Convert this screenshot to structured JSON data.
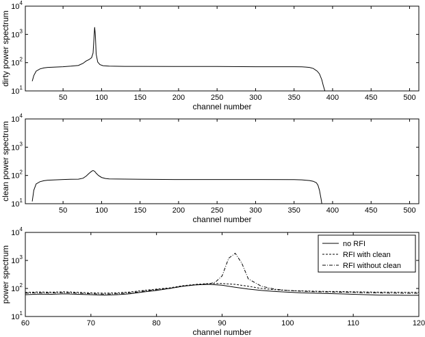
{
  "chart_data": [
    {
      "type": "line",
      "scale": "log-y",
      "xlabel": "channel number",
      "ylabel": "dirty power spectrum",
      "xlim": [
        1,
        512
      ],
      "ylim": [
        10,
        10000
      ],
      "xticks": [
        "50",
        "100",
        "150",
        "200",
        "250",
        "300",
        "350",
        "400",
        "450",
        "500"
      ],
      "series": [
        {
          "style": "solid",
          "points": [
            [
              10,
              22
            ],
            [
              12,
              35
            ],
            [
              15,
              50
            ],
            [
              20,
              60
            ],
            [
              25,
              65
            ],
            [
              30,
              68
            ],
            [
              40,
              70
            ],
            [
              50,
              72
            ],
            [
              60,
              75
            ],
            [
              70,
              80
            ],
            [
              76,
              95
            ],
            [
              80,
              115
            ],
            [
              84,
              130
            ],
            [
              87,
              150
            ],
            [
              89,
              220
            ],
            [
              90,
              600
            ],
            [
              91,
              1800
            ],
            [
              92,
              900
            ],
            [
              93,
              200
            ],
            [
              95,
              105
            ],
            [
              98,
              85
            ],
            [
              102,
              78
            ],
            [
              110,
              75
            ],
            [
              130,
              74
            ],
            [
              150,
              74
            ],
            [
              200,
              73
            ],
            [
              250,
              73
            ],
            [
              300,
              72
            ],
            [
              340,
              72
            ],
            [
              350,
              72
            ],
            [
              360,
              71
            ],
            [
              365,
              70
            ],
            [
              370,
              68
            ],
            [
              375,
              62
            ],
            [
              380,
              50
            ],
            [
              383,
              40
            ],
            [
              386,
              25
            ],
            [
              388,
              15
            ],
            [
              390,
              10
            ]
          ]
        }
      ]
    },
    {
      "type": "line",
      "scale": "log-y",
      "xlabel": "channel number",
      "ylabel": "clean power spectrum",
      "xlim": [
        1,
        512
      ],
      "ylim": [
        10,
        10000
      ],
      "xticks": [
        "50",
        "100",
        "150",
        "200",
        "250",
        "300",
        "350",
        "400",
        "450",
        "500"
      ],
      "series": [
        {
          "style": "solid",
          "points": [
            [
              10,
              12
            ],
            [
              12,
              30
            ],
            [
              15,
              50
            ],
            [
              20,
              60
            ],
            [
              25,
              65
            ],
            [
              30,
              68
            ],
            [
              40,
              70
            ],
            [
              50,
              72
            ],
            [
              60,
              73
            ],
            [
              70,
              74
            ],
            [
              76,
              80
            ],
            [
              80,
              95
            ],
            [
              84,
              120
            ],
            [
              87,
              140
            ],
            [
              89,
              150
            ],
            [
              91,
              140
            ],
            [
              93,
              120
            ],
            [
              96,
              100
            ],
            [
              100,
              85
            ],
            [
              105,
              78
            ],
            [
              110,
              75
            ],
            [
              150,
              73
            ],
            [
              200,
              72
            ],
            [
              250,
              72
            ],
            [
              300,
              72
            ],
            [
              350,
              71
            ],
            [
              360,
              70
            ],
            [
              365,
              68
            ],
            [
              370,
              66
            ],
            [
              375,
              62
            ],
            [
              379,
              55
            ],
            [
              381,
              45
            ],
            [
              383,
              30
            ],
            [
              385,
              15
            ],
            [
              386,
              10
            ]
          ]
        }
      ]
    },
    {
      "type": "line",
      "scale": "log-y",
      "xlabel": "channel number",
      "ylabel": "power spectrum",
      "xlim": [
        60,
        120
      ],
      "ylim": [
        10,
        10000
      ],
      "xticks": [
        "60",
        "70",
        "80",
        "90",
        "100",
        "110",
        "120"
      ],
      "legend_position": "top-right",
      "series": [
        {
          "name": "no RFI",
          "style": "solid",
          "points": [
            [
              60,
              60
            ],
            [
              62,
              63
            ],
            [
              64,
              62
            ],
            [
              66,
              64
            ],
            [
              68,
              62
            ],
            [
              70,
              60
            ],
            [
              72,
              58
            ],
            [
              74,
              60
            ],
            [
              76,
              65
            ],
            [
              78,
              75
            ],
            [
              80,
              85
            ],
            [
              82,
              100
            ],
            [
              84,
              120
            ],
            [
              86,
              135
            ],
            [
              88,
              140
            ],
            [
              90,
              130
            ],
            [
              92,
              110
            ],
            [
              94,
              95
            ],
            [
              96,
              85
            ],
            [
              98,
              78
            ],
            [
              100,
              74
            ],
            [
              102,
              70
            ],
            [
              104,
              68
            ],
            [
              106,
              66
            ],
            [
              108,
              64
            ],
            [
              110,
              62
            ],
            [
              112,
              60
            ],
            [
              114,
              58
            ],
            [
              116,
              58
            ],
            [
              118,
              57
            ],
            [
              120,
              57
            ]
          ]
        },
        {
          "name": "RFI with clean",
          "style": "dashed",
          "points": [
            [
              60,
              72
            ],
            [
              62,
              75
            ],
            [
              64,
              74
            ],
            [
              66,
              76
            ],
            [
              68,
              73
            ],
            [
              70,
              70
            ],
            [
              72,
              68
            ],
            [
              74,
              70
            ],
            [
              76,
              75
            ],
            [
              78,
              85
            ],
            [
              80,
              95
            ],
            [
              82,
              105
            ],
            [
              84,
              125
            ],
            [
              86,
              140
            ],
            [
              88,
              150
            ],
            [
              90,
              150
            ],
            [
              92,
              140
            ],
            [
              94,
              120
            ],
            [
              96,
              100
            ],
            [
              98,
              90
            ],
            [
              100,
              85
            ],
            [
              102,
              82
            ],
            [
              104,
              80
            ],
            [
              106,
              78
            ],
            [
              108,
              78
            ],
            [
              110,
              76
            ],
            [
              112,
              75
            ],
            [
              114,
              74
            ],
            [
              116,
              74
            ],
            [
              118,
              73
            ],
            [
              120,
              73
            ]
          ]
        },
        {
          "name": "RFI without clean",
          "style": "dashdot",
          "points": [
            [
              60,
              68
            ],
            [
              62,
              70
            ],
            [
              64,
              69
            ],
            [
              66,
              71
            ],
            [
              68,
              68
            ],
            [
              70,
              65
            ],
            [
              72,
              63
            ],
            [
              74,
              65
            ],
            [
              76,
              70
            ],
            [
              78,
              80
            ],
            [
              80,
              90
            ],
            [
              82,
              100
            ],
            [
              84,
              120
            ],
            [
              86,
              135
            ],
            [
              88,
              145
            ],
            [
              89,
              170
            ],
            [
              90,
              280
            ],
            [
              91,
              1200
            ],
            [
              92,
              1800
            ],
            [
              93,
              800
            ],
            [
              94,
              220
            ],
            [
              96,
              120
            ],
            [
              98,
              95
            ],
            [
              100,
              85
            ],
            [
              102,
              80
            ],
            [
              104,
              77
            ],
            [
              106,
              75
            ],
            [
              108,
              73
            ],
            [
              110,
              72
            ],
            [
              112,
              70
            ],
            [
              114,
              69
            ],
            [
              116,
              68
            ],
            [
              118,
              67
            ],
            [
              120,
              67
            ]
          ]
        }
      ]
    }
  ]
}
